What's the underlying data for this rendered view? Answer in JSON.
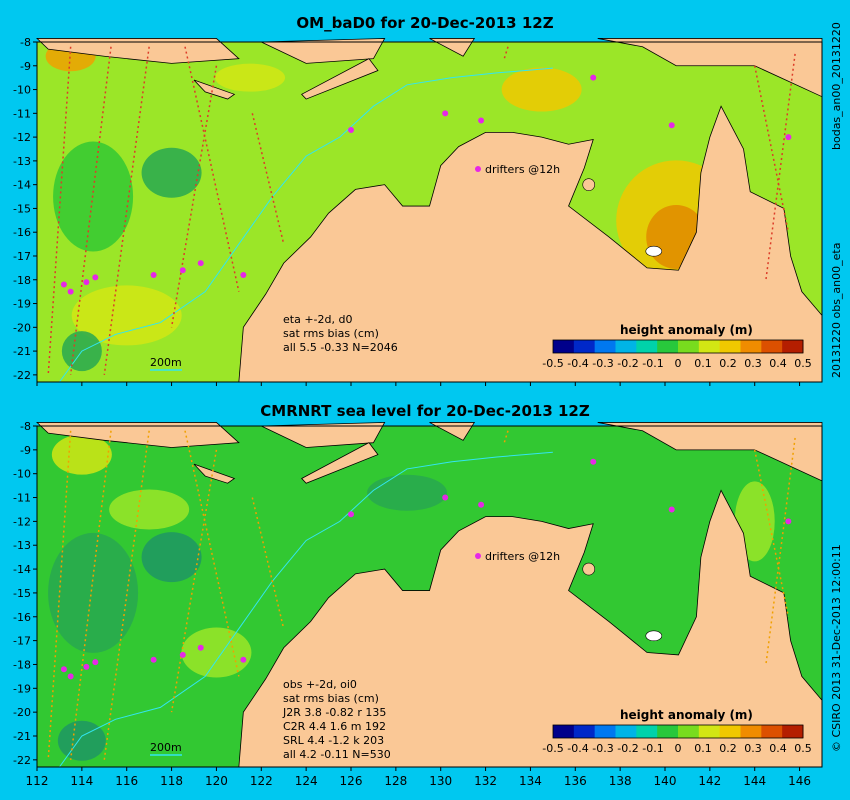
{
  "panels": [
    {
      "title": "OM_baD0 for 20-Dec-2013 12Z",
      "annotation": [
        "eta +-2d, d0",
        "sat rms bias (cm)",
        "all 5.5 -0.33 N=2046"
      ],
      "side_label": "20131220 obs_an00_eta",
      "side_label_top": "bodas_an00_20131220"
    },
    {
      "title": "CMRNRT sea level  for 20-Dec-2013 12Z",
      "annotation": [
        "obs +-2d, oi0",
        "sat rms bias (cm)",
        "J2R   3.8 -0.82 r 135",
        "C2R   4.4 1.6 m 192",
        "SRL   4.4 -1.2 k 203",
        "all   4.2 -0.11 N=530"
      ],
      "side_label": "© CSIRO 2013   31-Dec-2013 12:00:11"
    }
  ],
  "drifters_label": "drifters @12h",
  "scale_label": "200m",
  "colorbar": {
    "title": "height anomaly (m)",
    "ticks": [
      "-0.5",
      "-0.4",
      "-0.3",
      "-0.2",
      "-0.1",
      "0",
      "0.1",
      "0.2",
      "0.3",
      "0.4",
      "0.5"
    ],
    "colors": [
      "#00008b",
      "#0028c8",
      "#0078f0",
      "#00b4e6",
      "#00d2aa",
      "#28c83c",
      "#78dc1e",
      "#d2e614",
      "#f0c800",
      "#f08c00",
      "#dc5000",
      "#b41e00"
    ]
  },
  "map": {
    "lat_labels": [
      "-8",
      "-9",
      "-10",
      "-11",
      "-12",
      "-13",
      "-14",
      "-15",
      "-16",
      "-17",
      "-18",
      "-19",
      "-20",
      "-21",
      "-22"
    ],
    "lon_labels": [
      "112",
      "114",
      "116",
      "118",
      "120",
      "122",
      "124",
      "126",
      "128",
      "130",
      "132",
      "134",
      "136",
      "138",
      "140",
      "142",
      "144",
      "146"
    ],
    "land_color": "#fac896",
    "ocean_color_top": "#9be628",
    "ocean_color_bottom": "#32c832"
  }
}
